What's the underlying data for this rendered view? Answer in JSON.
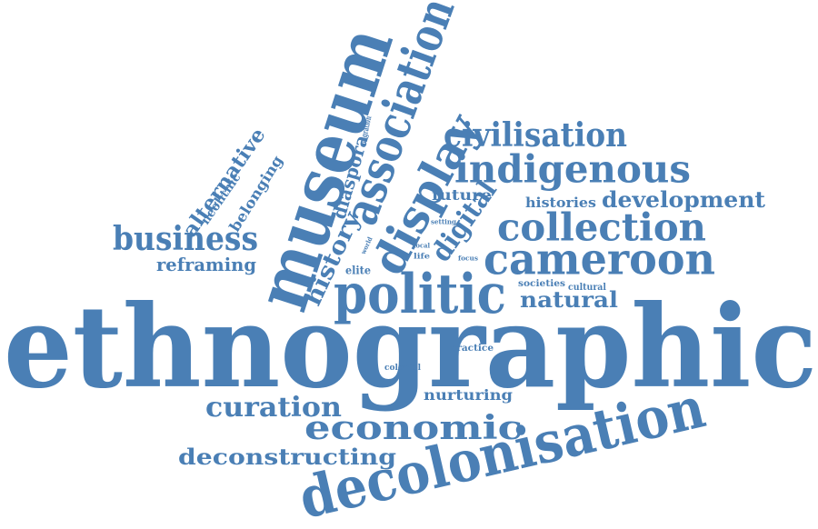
{
  "color": "#4a7fb5",
  "words": [
    "ethnographic",
    "museum",
    "decolonisation",
    "politic",
    "association",
    "display",
    "cameroon",
    "collection",
    "indigenous",
    "civilisation",
    "economic",
    "curation",
    "digital",
    "business",
    "history",
    "development",
    "deconstructing",
    "diaspora",
    "natural",
    "alternative",
    "neolithic",
    "belonging",
    "reframing",
    "future",
    "histories",
    "nurturing",
    "migration",
    "elite",
    "practice",
    "colonial",
    "societies",
    "cultural",
    "setting",
    "local",
    "world",
    "life",
    "focus"
  ]
}
